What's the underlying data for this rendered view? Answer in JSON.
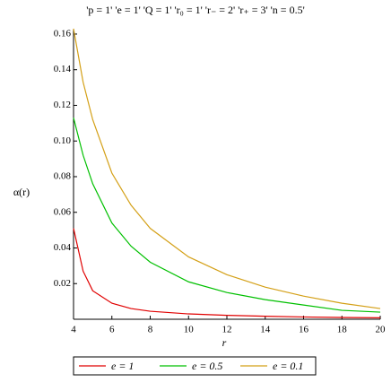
{
  "chart_data": {
    "type": "line",
    "title": "'p = 1' 'e = 1' 'Q = 1' 'r₀ = 1' 'r₋ = 2' 'r₊ = 3' 'n = 0.5'",
    "x_label": "r",
    "y_label": "α(r)",
    "x": [
      4,
      4.5,
      5,
      6,
      7,
      8,
      10,
      12,
      14,
      16,
      18,
      20
    ],
    "series": [
      {
        "name": "e = 1",
        "color": "#e00000",
        "values": [
          0.051,
          0.027,
          0.016,
          0.009,
          0.006,
          0.0045,
          0.003,
          0.0022,
          0.0017,
          0.0013,
          0.001,
          0.0008
        ]
      },
      {
        "name": "e = 0.5",
        "color": "#00c000",
        "values": [
          0.113,
          0.092,
          0.076,
          0.054,
          0.041,
          0.032,
          0.021,
          0.015,
          0.011,
          0.008,
          0.005,
          0.004
        ]
      },
      {
        "name": "e = 0.1",
        "color": "#d4a017",
        "values": [
          0.163,
          0.133,
          0.112,
          0.082,
          0.064,
          0.051,
          0.035,
          0.025,
          0.018,
          0.013,
          0.009,
          0.006
        ]
      }
    ],
    "xlim": [
      4,
      20
    ],
    "xticks": [
      4,
      6,
      8,
      10,
      12,
      14,
      16,
      18,
      20
    ],
    "ylim": [
      0,
      0.163
    ],
    "yticks": [
      0.02,
      0.04,
      0.06,
      0.08,
      {
        "value": 0.1,
        "label": "0.10"
      },
      0.12,
      0.14,
      0.16
    ],
    "legend": "bottom"
  }
}
